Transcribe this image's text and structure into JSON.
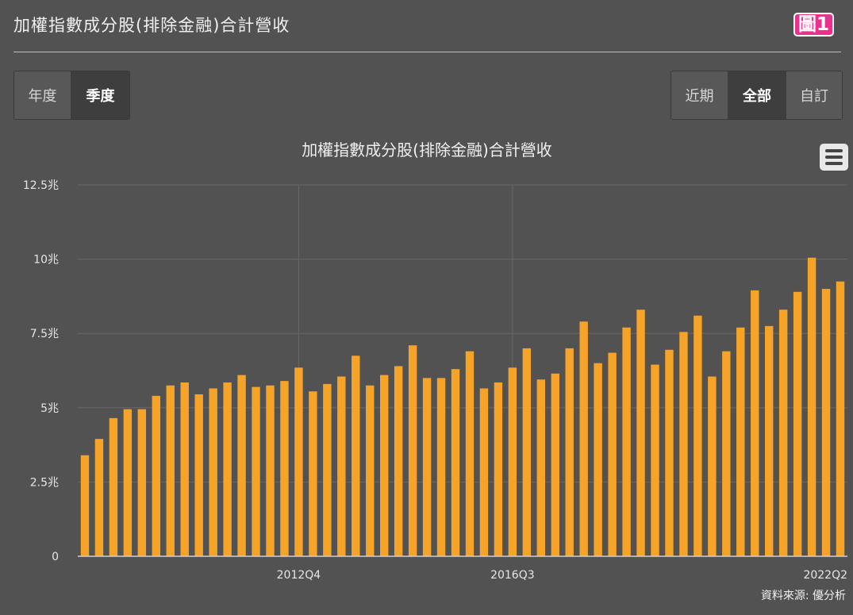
{
  "header": {
    "title": "加權指數成分股(排除金融)合計營收",
    "badge": "圖1"
  },
  "period_tabs": [
    {
      "label": "年度",
      "active": false
    },
    {
      "label": "季度",
      "active": true
    }
  ],
  "range_tabs": [
    {
      "label": "近期",
      "active": false
    },
    {
      "label": "全部",
      "active": true
    },
    {
      "label": "自訂",
      "active": false
    }
  ],
  "menu": {
    "icon": "hamburger-icon"
  },
  "colors": {
    "bar": "#f5a329",
    "background": "#525252",
    "grid": "#686868"
  },
  "chart_data": {
    "type": "bar",
    "title": "加權指數成分股(排除金融)合計營收",
    "xlabel": "",
    "ylabel": "",
    "ylim": [
      0,
      12.5
    ],
    "y_ticks": [
      {
        "value": 0,
        "label": "0"
      },
      {
        "value": 2.5,
        "label": "2.5兆"
      },
      {
        "value": 5,
        "label": "5兆"
      },
      {
        "value": 7.5,
        "label": "7.5兆"
      },
      {
        "value": 10,
        "label": "10兆"
      },
      {
        "value": 12.5,
        "label": "12.5兆"
      }
    ],
    "x_tick_labels": [
      {
        "index": 15,
        "label": "2012Q4"
      },
      {
        "index": 30,
        "label": "2016Q3"
      },
      {
        "index": 53,
        "label": "2022Q2"
      }
    ],
    "grid": true,
    "legend": "none",
    "categories": [
      "2009Q1",
      "2009Q2",
      "2009Q3",
      "2009Q4",
      "2010Q1",
      "2010Q2",
      "2010Q3",
      "2010Q4",
      "2011Q1",
      "2011Q2",
      "2011Q3",
      "2011Q4",
      "2012Q1",
      "2012Q2",
      "2012Q3",
      "2012Q4",
      "2013Q1",
      "2013Q2",
      "2013Q3",
      "2013Q4",
      "2014Q1",
      "2014Q2",
      "2014Q3",
      "2014Q4",
      "2015Q1",
      "2015Q2",
      "2015Q3",
      "2015Q4",
      "2016Q1",
      "2016Q2",
      "2016Q3",
      "2016Q4",
      "2017Q1",
      "2017Q2",
      "2017Q3",
      "2017Q4",
      "2018Q1",
      "2018Q2",
      "2018Q3",
      "2018Q4",
      "2019Q1",
      "2019Q2",
      "2019Q3",
      "2019Q4",
      "2020Q1",
      "2020Q2",
      "2020Q3",
      "2020Q4",
      "2021Q1",
      "2021Q2",
      "2021Q3",
      "2021Q4",
      "2022Q1",
      "2022Q2"
    ],
    "values": [
      3.4,
      3.95,
      4.65,
      4.95,
      4.95,
      5.4,
      5.75,
      5.85,
      5.45,
      5.65,
      5.85,
      6.1,
      5.7,
      5.75,
      5.9,
      6.35,
      5.55,
      5.8,
      6.05,
      6.75,
      5.75,
      6.1,
      6.4,
      7.1,
      6.0,
      6.0,
      6.3,
      6.9,
      5.65,
      5.85,
      6.35,
      7.0,
      5.95,
      6.15,
      7.0,
      7.9,
      6.5,
      6.85,
      7.7,
      8.3,
      6.45,
      6.95,
      7.55,
      8.1,
      6.05,
      6.9,
      7.7,
      8.95,
      7.75,
      8.3,
      8.9,
      10.05,
      9.0,
      9.25
    ],
    "source": "資料來源: 優分析"
  }
}
